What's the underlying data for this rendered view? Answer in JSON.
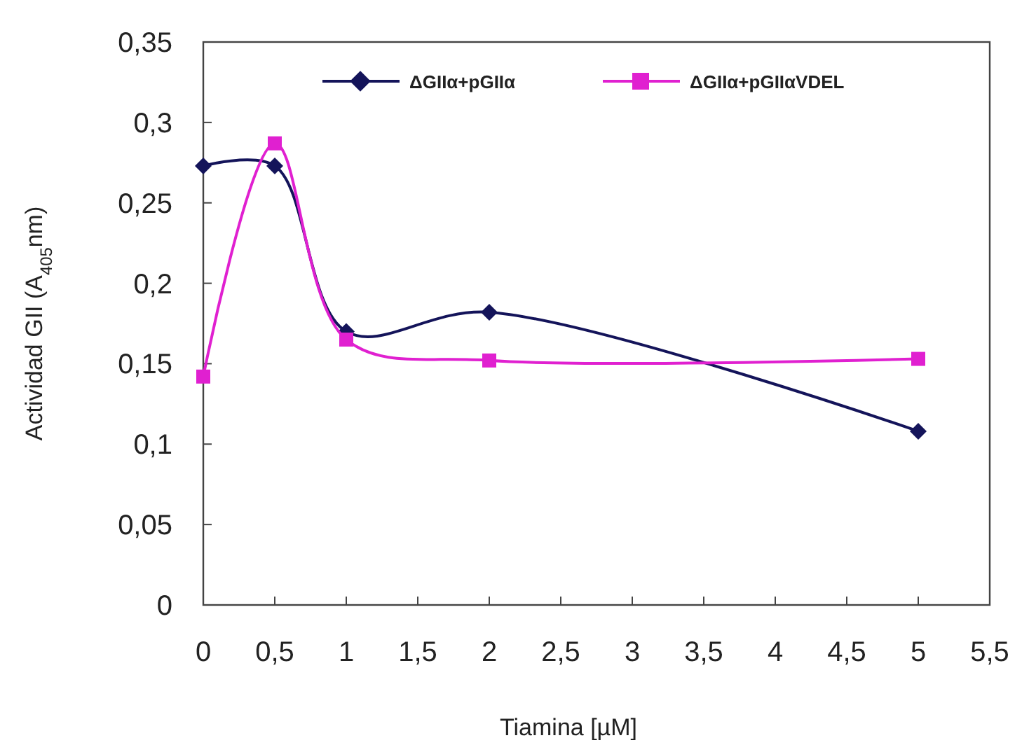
{
  "chart_data": {
    "type": "line",
    "xlabel": "Tiamina [µM]",
    "ylabel": "Actividad GII (A$_{405}$nm)",
    "x": [
      0,
      0.5,
      1,
      2,
      5
    ],
    "series": [
      {
        "name": "ΔGIIα+pGIIα",
        "color": "#14145a",
        "values": [
          0.273,
          0.273,
          0.17,
          0.182,
          0.108
        ],
        "marker": "diamond"
      },
      {
        "name": "ΔGIIα+pGIIαVDEL",
        "color": "#e020d0",
        "values": [
          0.142,
          0.287,
          0.165,
          0.152,
          0.153
        ],
        "marker": "square"
      }
    ],
    "xlim": [
      0,
      5.5
    ],
    "xticks": [
      0,
      {
        "value": 0.5,
        "label": "0,5"
      },
      1,
      {
        "value": 1.5,
        "label": "1,5"
      },
      2,
      {
        "value": 2.5,
        "label": "2,5"
      },
      3,
      {
        "value": 3.5,
        "label": "3,5"
      },
      4,
      {
        "value": 4.5,
        "label": "4,5"
      },
      5,
      {
        "value": 5.5,
        "label": "5,5"
      }
    ],
    "ylim": [
      0,
      0.35
    ],
    "yticks": [
      0,
      {
        "value": 0.05,
        "label": "0,05"
      },
      {
        "value": 0.1,
        "label": "0,1"
      },
      {
        "value": 0.15,
        "label": "0,15"
      },
      {
        "value": 0.2,
        "label": "0,2"
      },
      {
        "value": 0.25,
        "label": "0,25"
      },
      {
        "value": 0.3,
        "label": "0,3"
      },
      {
        "value": 0.35,
        "label": "0,35"
      }
    ],
    "grid": false,
    "legend": "top"
  }
}
